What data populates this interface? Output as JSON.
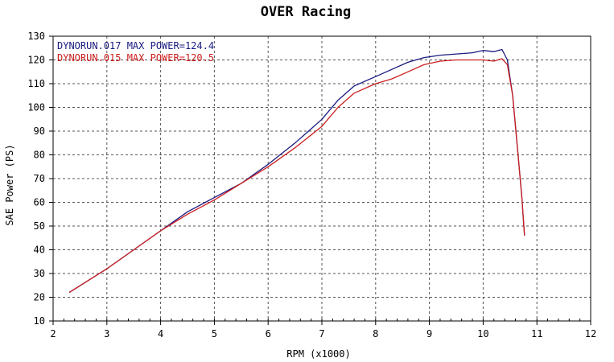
{
  "chart_data": {
    "type": "line",
    "title": "OVER Racing",
    "xlabel": "RPM (x1000)",
    "ylabel": "SAE Power (PS)",
    "xlim": [
      2,
      12
    ],
    "ylim": [
      10,
      130
    ],
    "xticks": [
      "2",
      "3",
      "4",
      "5",
      "6",
      "7",
      "8",
      "9",
      "10",
      "11",
      "12"
    ],
    "yticks": [
      "10",
      "20",
      "30",
      "40",
      "50",
      "60",
      "70",
      "80",
      "90",
      "100",
      "110",
      "120",
      "130"
    ],
    "grid": true,
    "legend_position": "top-left",
    "series": [
      {
        "name": "DYNORUN.017  MAX POWER=124.4",
        "color": "#1a1a80",
        "x": [
          2.3,
          3.0,
          3.5,
          4.0,
          4.5,
          5.0,
          5.5,
          6.0,
          6.5,
          7.0,
          7.3,
          7.6,
          8.0,
          8.3,
          8.6,
          8.9,
          9.2,
          9.5,
          9.8,
          10.0,
          10.2,
          10.35,
          10.45,
          10.55,
          10.65,
          10.72,
          10.77
        ],
        "y": [
          22,
          32,
          40,
          48,
          56,
          62,
          68,
          76,
          85,
          95,
          103,
          109,
          113,
          116,
          119,
          121,
          122,
          122.5,
          123,
          124,
          123.5,
          124.4,
          120,
          105,
          80,
          62,
          46
        ]
      },
      {
        "name": "DYNORUN.015  MAX POWER=120.5",
        "color": "#cc1f1f",
        "x": [
          2.3,
          3.0,
          3.5,
          4.0,
          4.5,
          5.0,
          5.5,
          6.0,
          6.5,
          7.0,
          7.3,
          7.6,
          8.0,
          8.3,
          8.6,
          8.9,
          9.2,
          9.5,
          9.8,
          10.0,
          10.2,
          10.35,
          10.45,
          10.55,
          10.65,
          10.72,
          10.77
        ],
        "y": [
          22,
          32,
          40,
          48,
          55,
          61,
          68,
          75,
          83,
          92,
          100,
          106,
          110,
          112,
          115,
          118,
          119.5,
          120,
          120,
          120,
          119.5,
          120.5,
          118,
          105,
          80,
          62,
          46
        ]
      }
    ]
  }
}
